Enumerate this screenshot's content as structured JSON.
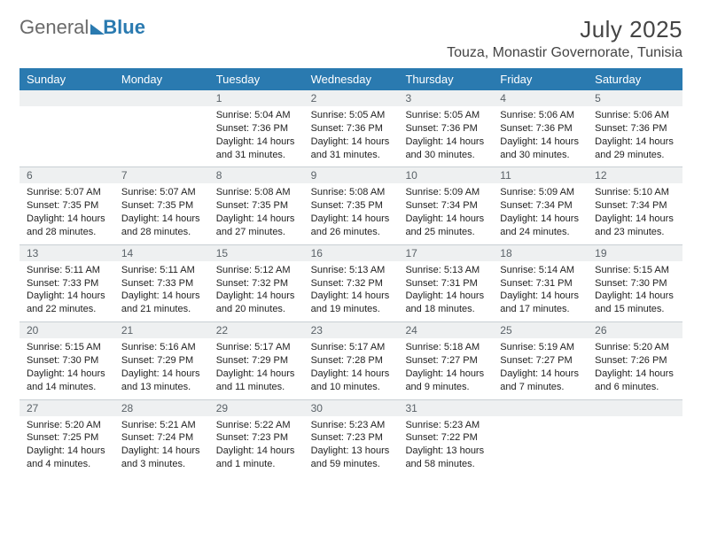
{
  "logo": {
    "text1": "General",
    "text2": "Blue"
  },
  "title": "July 2025",
  "location": "Touza, Monastir Governorate, Tunisia",
  "colors": {
    "header_bg": "#2a7ab0",
    "header_text": "#ffffff",
    "daynum_bg": "#eef0f1",
    "daynum_text": "#5a6268",
    "cell_text": "#222222",
    "divider": "#c9cfd4",
    "page_bg": "#ffffff",
    "title_text": "#444444"
  },
  "dow": [
    "Sunday",
    "Monday",
    "Tuesday",
    "Wednesday",
    "Thursday",
    "Friday",
    "Saturday"
  ],
  "weeks": [
    [
      null,
      null,
      {
        "n": "1",
        "sr": "5:04 AM",
        "ss": "7:36 PM",
        "dl": "14 hours and 31 minutes."
      },
      {
        "n": "2",
        "sr": "5:05 AM",
        "ss": "7:36 PM",
        "dl": "14 hours and 31 minutes."
      },
      {
        "n": "3",
        "sr": "5:05 AM",
        "ss": "7:36 PM",
        "dl": "14 hours and 30 minutes."
      },
      {
        "n": "4",
        "sr": "5:06 AM",
        "ss": "7:36 PM",
        "dl": "14 hours and 30 minutes."
      },
      {
        "n": "5",
        "sr": "5:06 AM",
        "ss": "7:36 PM",
        "dl": "14 hours and 29 minutes."
      }
    ],
    [
      {
        "n": "6",
        "sr": "5:07 AM",
        "ss": "7:35 PM",
        "dl": "14 hours and 28 minutes."
      },
      {
        "n": "7",
        "sr": "5:07 AM",
        "ss": "7:35 PM",
        "dl": "14 hours and 28 minutes."
      },
      {
        "n": "8",
        "sr": "5:08 AM",
        "ss": "7:35 PM",
        "dl": "14 hours and 27 minutes."
      },
      {
        "n": "9",
        "sr": "5:08 AM",
        "ss": "7:35 PM",
        "dl": "14 hours and 26 minutes."
      },
      {
        "n": "10",
        "sr": "5:09 AM",
        "ss": "7:34 PM",
        "dl": "14 hours and 25 minutes."
      },
      {
        "n": "11",
        "sr": "5:09 AM",
        "ss": "7:34 PM",
        "dl": "14 hours and 24 minutes."
      },
      {
        "n": "12",
        "sr": "5:10 AM",
        "ss": "7:34 PM",
        "dl": "14 hours and 23 minutes."
      }
    ],
    [
      {
        "n": "13",
        "sr": "5:11 AM",
        "ss": "7:33 PM",
        "dl": "14 hours and 22 minutes."
      },
      {
        "n": "14",
        "sr": "5:11 AM",
        "ss": "7:33 PM",
        "dl": "14 hours and 21 minutes."
      },
      {
        "n": "15",
        "sr": "5:12 AM",
        "ss": "7:32 PM",
        "dl": "14 hours and 20 minutes."
      },
      {
        "n": "16",
        "sr": "5:13 AM",
        "ss": "7:32 PM",
        "dl": "14 hours and 19 minutes."
      },
      {
        "n": "17",
        "sr": "5:13 AM",
        "ss": "7:31 PM",
        "dl": "14 hours and 18 minutes."
      },
      {
        "n": "18",
        "sr": "5:14 AM",
        "ss": "7:31 PM",
        "dl": "14 hours and 17 minutes."
      },
      {
        "n": "19",
        "sr": "5:15 AM",
        "ss": "7:30 PM",
        "dl": "14 hours and 15 minutes."
      }
    ],
    [
      {
        "n": "20",
        "sr": "5:15 AM",
        "ss": "7:30 PM",
        "dl": "14 hours and 14 minutes."
      },
      {
        "n": "21",
        "sr": "5:16 AM",
        "ss": "7:29 PM",
        "dl": "14 hours and 13 minutes."
      },
      {
        "n": "22",
        "sr": "5:17 AM",
        "ss": "7:29 PM",
        "dl": "14 hours and 11 minutes."
      },
      {
        "n": "23",
        "sr": "5:17 AM",
        "ss": "7:28 PM",
        "dl": "14 hours and 10 minutes."
      },
      {
        "n": "24",
        "sr": "5:18 AM",
        "ss": "7:27 PM",
        "dl": "14 hours and 9 minutes."
      },
      {
        "n": "25",
        "sr": "5:19 AM",
        "ss": "7:27 PM",
        "dl": "14 hours and 7 minutes."
      },
      {
        "n": "26",
        "sr": "5:20 AM",
        "ss": "7:26 PM",
        "dl": "14 hours and 6 minutes."
      }
    ],
    [
      {
        "n": "27",
        "sr": "5:20 AM",
        "ss": "7:25 PM",
        "dl": "14 hours and 4 minutes."
      },
      {
        "n": "28",
        "sr": "5:21 AM",
        "ss": "7:24 PM",
        "dl": "14 hours and 3 minutes."
      },
      {
        "n": "29",
        "sr": "5:22 AM",
        "ss": "7:23 PM",
        "dl": "14 hours and 1 minute."
      },
      {
        "n": "30",
        "sr": "5:23 AM",
        "ss": "7:23 PM",
        "dl": "13 hours and 59 minutes."
      },
      {
        "n": "31",
        "sr": "5:23 AM",
        "ss": "7:22 PM",
        "dl": "13 hours and 58 minutes."
      },
      null,
      null
    ]
  ],
  "labels": {
    "sunrise": "Sunrise: ",
    "sunset": "Sunset: ",
    "daylight": "Daylight: "
  }
}
